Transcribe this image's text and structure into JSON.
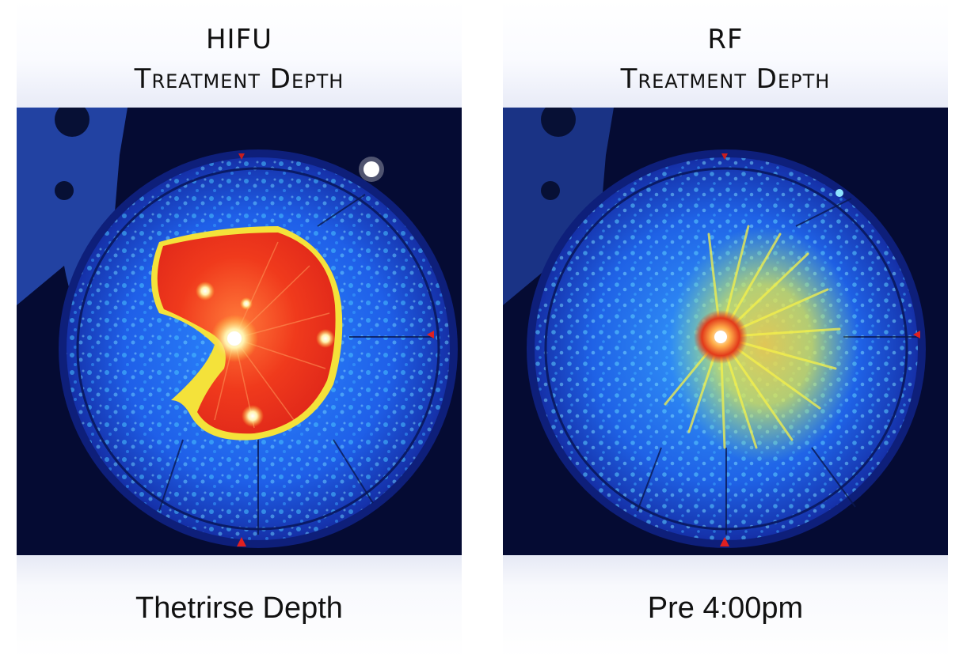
{
  "panels": [
    {
      "title_line1": "HIFU",
      "title_line2": "Treatment Depth",
      "caption": "Thetrirse Depth",
      "heatmap_style": "solid-red-lobe"
    },
    {
      "title_line1": "RF",
      "title_line2": "Treatment Depth",
      "caption": "Pre 4:00pm",
      "heatmap_style": "yellow-radial-streaks"
    }
  ],
  "colors": {
    "background_dark": "#050b33",
    "disk_blue": "#1a3fd6",
    "speckle_cyan": "#3fb0ff",
    "heat_red": "#e5261a",
    "heat_yellow": "#f4f13a",
    "marker_red": "#e02020"
  }
}
